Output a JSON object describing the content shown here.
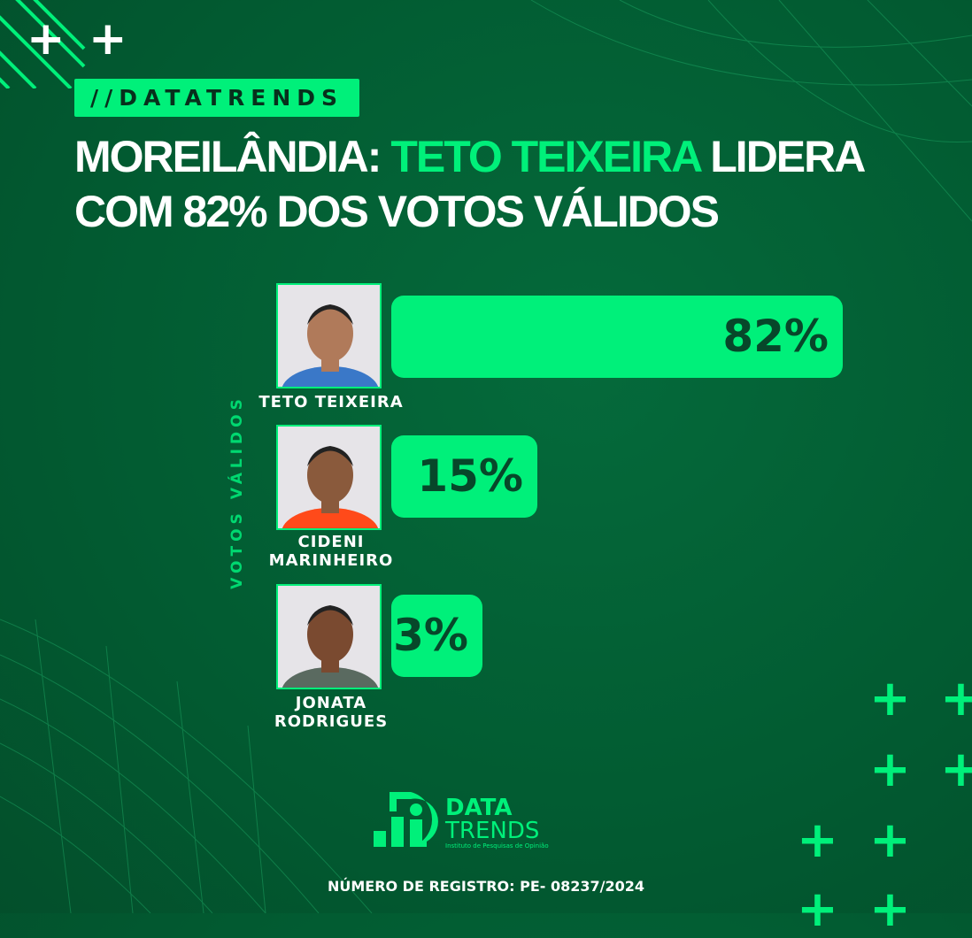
{
  "header": {
    "tag": "//DATATRENDS",
    "title_part1": "MOREILÂNDIA: ",
    "title_highlight": "TETO TEIXEIRA",
    "title_part2": " LIDERA COM 82% DOS VOTOS VÁLIDOS"
  },
  "colors": {
    "background": "#025c32",
    "accent": "#00f07a",
    "bar_text": "#07472a"
  },
  "chart_data": {
    "type": "bar",
    "orientation": "horizontal",
    "ylabel": "VOTOS VÁLIDOS",
    "categories": [
      "TETO TEIXEIRA",
      "CIDENI MARINHEIRO",
      "JONATA RODRIGUES"
    ],
    "values": [
      82,
      15,
      3
    ],
    "data_labels": [
      "82%",
      "15%",
      "3%"
    ]
  },
  "footer": {
    "logo_line1": "DATA",
    "logo_line2": "TRENDS",
    "logo_tagline": "Instituto de Pesquisas de Opinião",
    "registration": "NÚMERO DE REGISTRO:  PE- 08237/2024"
  }
}
